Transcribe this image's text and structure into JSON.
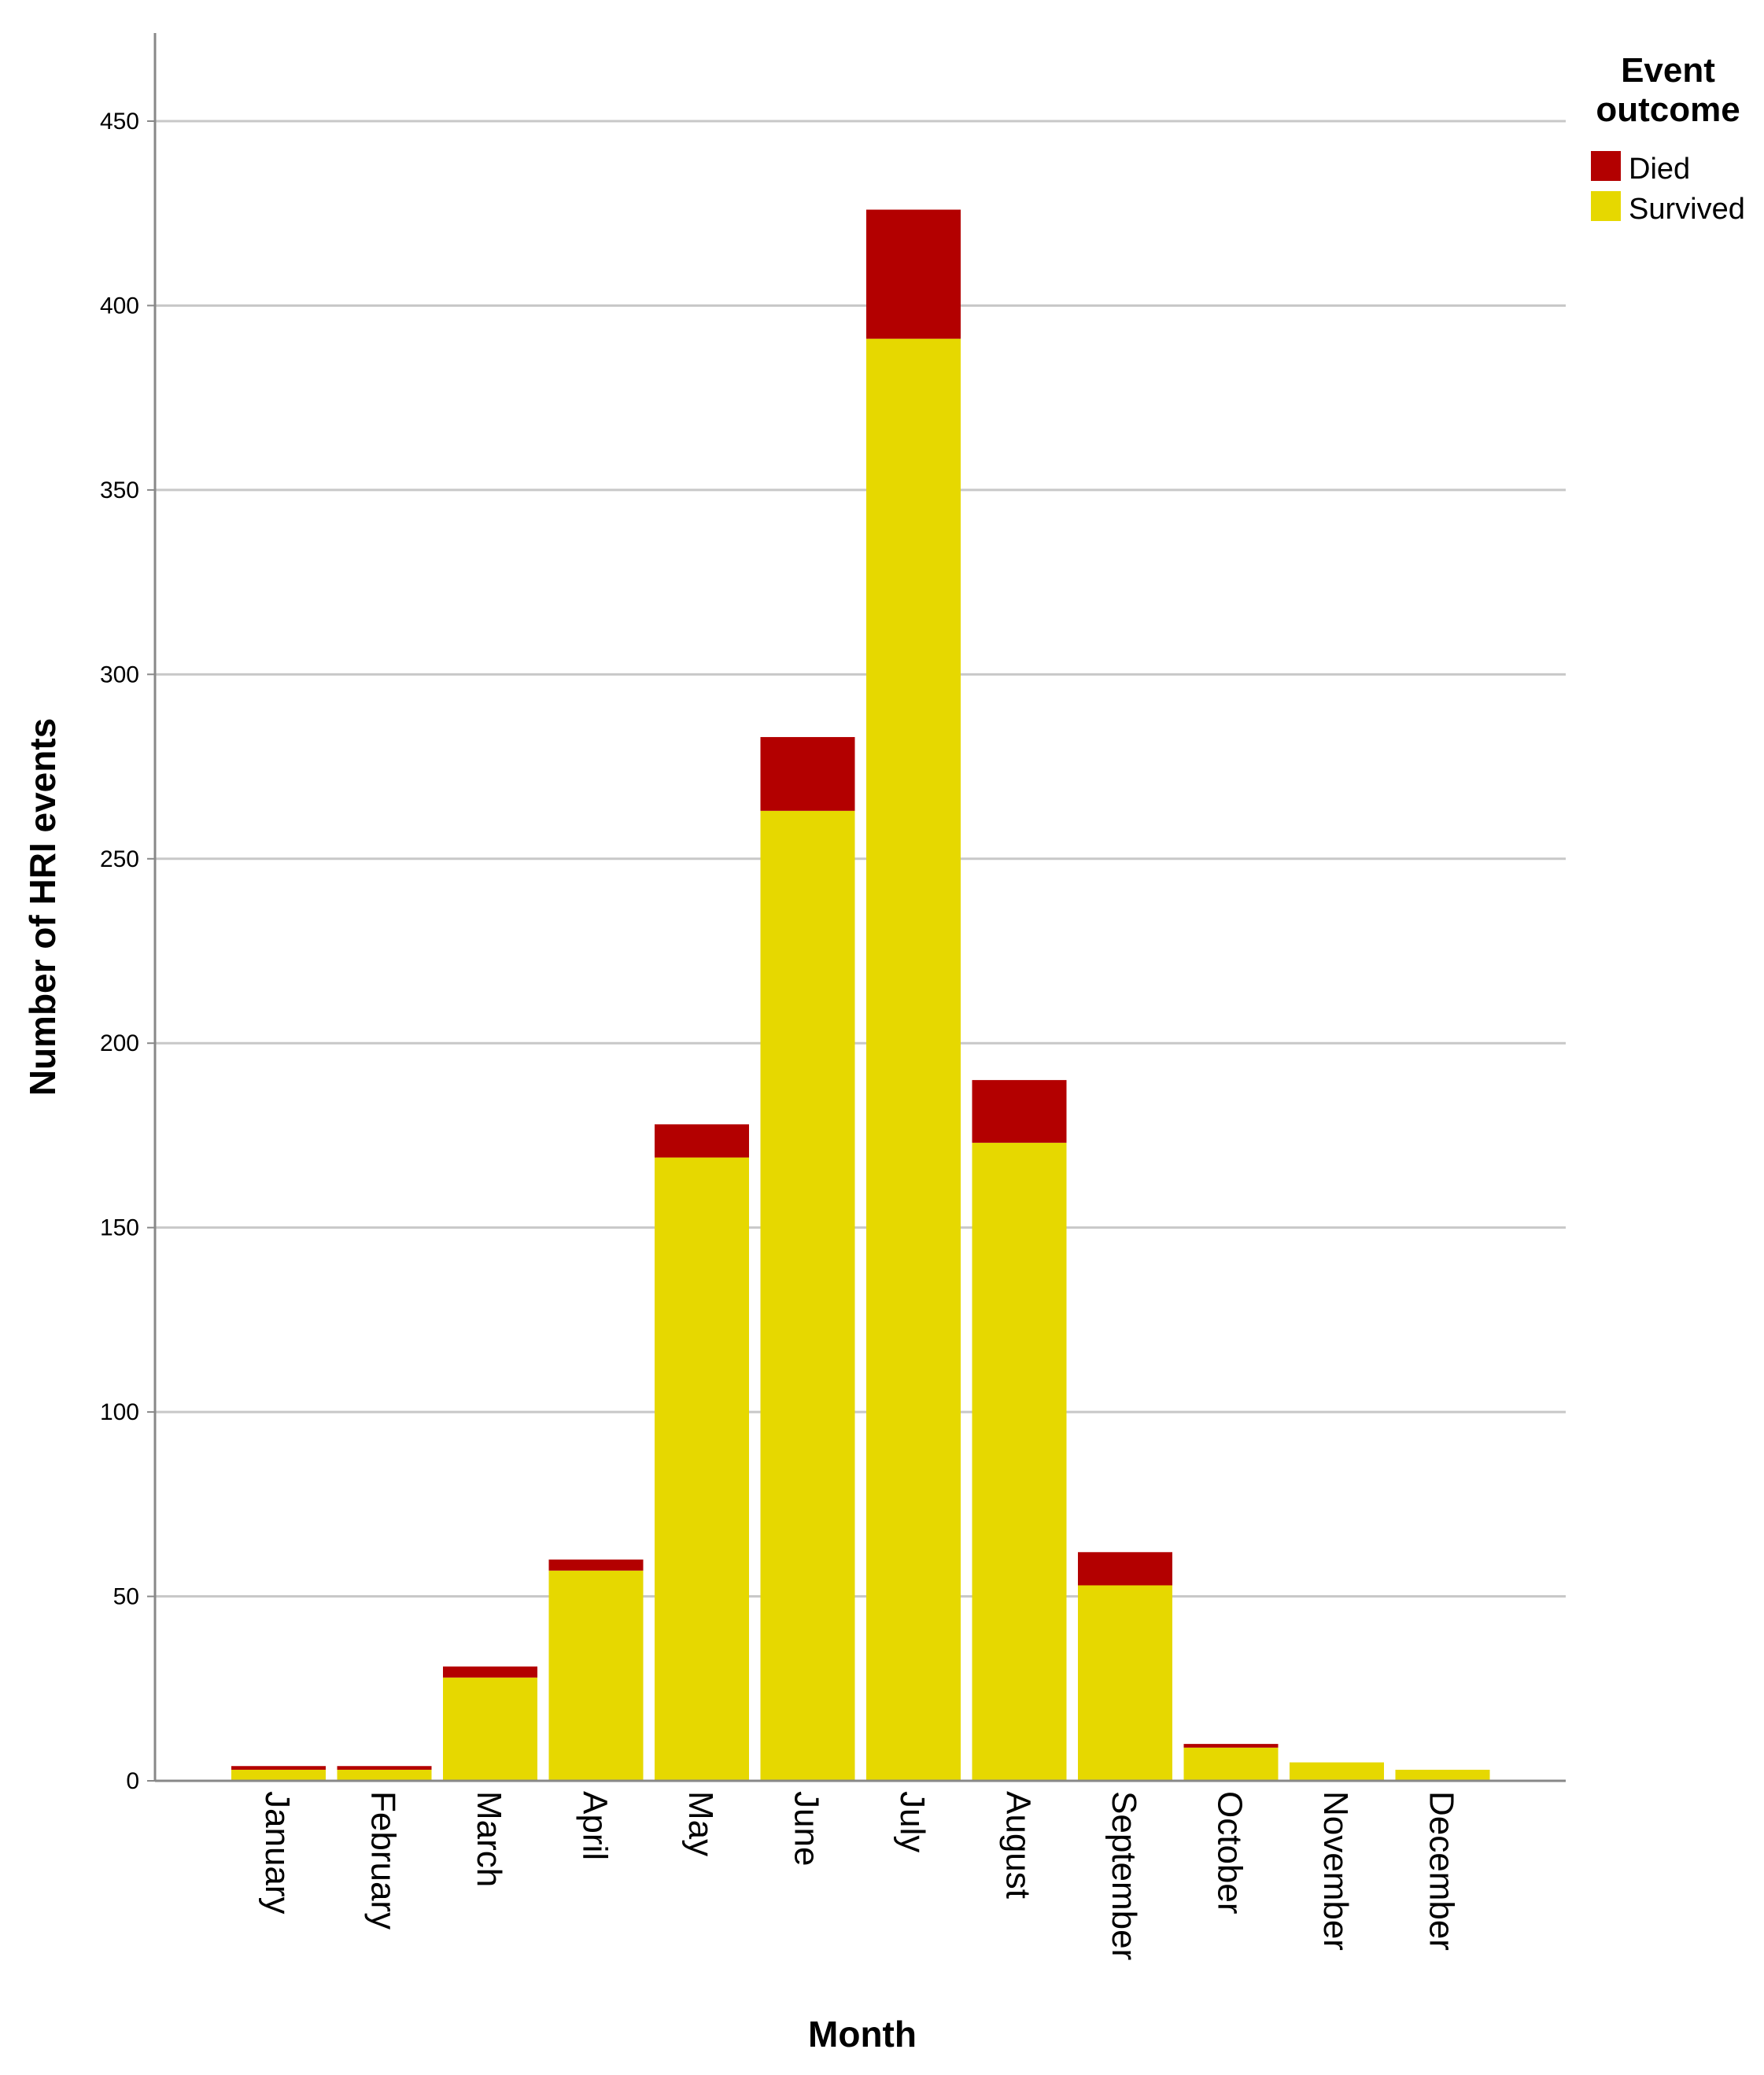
{
  "chart_data": {
    "type": "bar",
    "stacked": true,
    "title": "",
    "xlabel": "Month",
    "ylabel": "Number of HRI events",
    "ylim": [
      0,
      470
    ],
    "yticks": [
      0,
      50,
      100,
      150,
      200,
      250,
      300,
      350,
      400,
      450
    ],
    "grid": true,
    "categories": [
      "January",
      "February",
      "March",
      "April",
      "May",
      "June",
      "July",
      "August",
      "September",
      "October",
      "November",
      "December"
    ],
    "series": [
      {
        "name": "Survived",
        "color": "#E6D800",
        "values": [
          3,
          3,
          28,
          57,
          169,
          263,
          391,
          173,
          53,
          9,
          5,
          3
        ]
      },
      {
        "name": "Died",
        "color": "#B30000",
        "values": [
          1,
          1,
          3,
          3,
          9,
          20,
          35,
          17,
          9,
          1,
          0,
          0
        ]
      }
    ],
    "legend": {
      "title_line1": "Event",
      "title_line2": "outcome",
      "position": "top-right",
      "entries": [
        "Died",
        "Survived"
      ]
    }
  }
}
